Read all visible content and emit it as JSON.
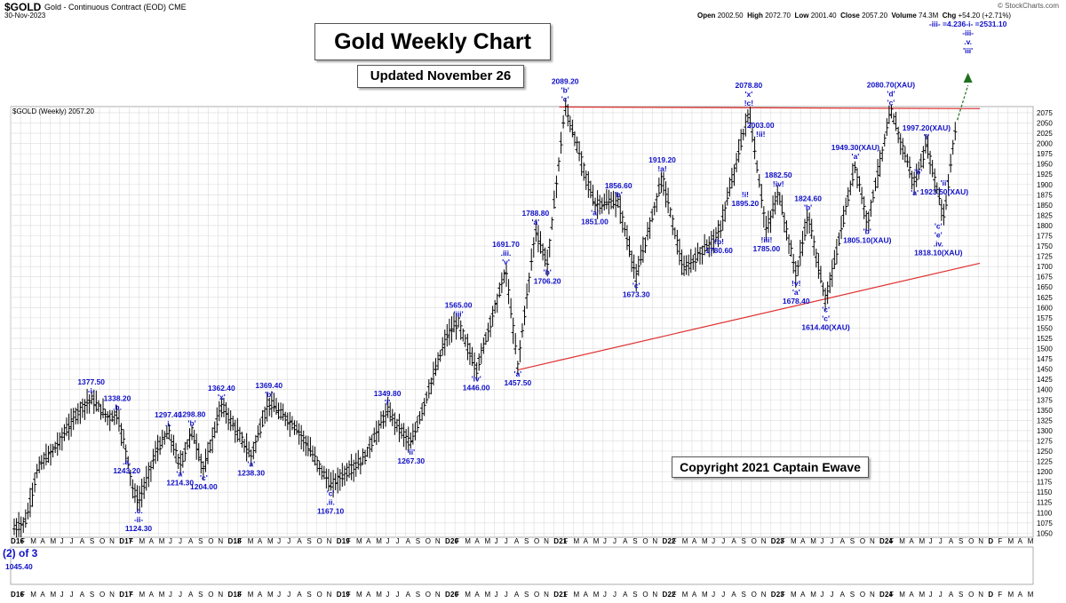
{
  "header": {
    "symbol": "$GOLD",
    "name": "Gold - Continuous Contract (EOD)",
    "exchange": "CME",
    "date": "30-Nov-2023",
    "brand": "© StockCharts.com",
    "open_label": "Open",
    "open": "2002.50",
    "high_label": "High",
    "high": "2072.70",
    "low_label": "Low",
    "low": "2001.40",
    "close_label": "Close",
    "close": "2057.20",
    "volume_label": "Volume",
    "volume": "74.3M",
    "chg_label": "Chg",
    "chg": "+54.20 (+2.71%)",
    "legend": "$GOLD (Weekly) 2057.20"
  },
  "boxes": {
    "title": "Gold Weekly Chart",
    "updated": "Updated November 26",
    "copyright": "Copyright 2021 Captain Ewave"
  },
  "lower_panel": {
    "label": "(2) of 3",
    "value": "1045.40"
  },
  "colors": {
    "wave_label": "#1010c8",
    "resistance": "#e03030",
    "support": "#e03030",
    "channel": "#b030d8",
    "projection": "#207020",
    "grid": "#dcdcdc",
    "bars": "#000000"
  },
  "chart_data": {
    "type": "ohlc",
    "title": "Gold Weekly Chart",
    "xlabel": "",
    "ylabel": "",
    "ylim": [
      1040,
      2090
    ],
    "y_ticks": [
      1050,
      1075,
      1100,
      1125,
      1150,
      1175,
      1200,
      1225,
      1250,
      1275,
      1300,
      1325,
      1350,
      1375,
      1400,
      1425,
      1450,
      1475,
      1500,
      1525,
      1550,
      1575,
      1600,
      1625,
      1650,
      1675,
      1700,
      1725,
      1750,
      1775,
      1800,
      1825,
      1850,
      1875,
      1900,
      1925,
      1950,
      1975,
      2000,
      2025,
      2050,
      2075
    ],
    "x_axis": {
      "month_labels": [
        "D",
        "F",
        "M",
        "A",
        "M",
        "J",
        "J",
        "A",
        "S",
        "O",
        "N",
        "D",
        "F",
        "M",
        "A",
        "M",
        "J",
        "J",
        "A",
        "S",
        "O",
        "N",
        "D",
        "F",
        "M",
        "A",
        "M",
        "J",
        "J",
        "A",
        "S",
        "O",
        "N",
        "D",
        "F",
        "M",
        "A",
        "M",
        "J",
        "J",
        "A",
        "S",
        "O",
        "N",
        "D",
        "F",
        "M",
        "A",
        "M",
        "J",
        "J",
        "A",
        "S",
        "O",
        "N",
        "D",
        "F",
        "M",
        "A",
        "M",
        "J",
        "J",
        "A",
        "S",
        "O",
        "N",
        "D",
        "F",
        "M",
        "A",
        "M",
        "J",
        "J",
        "A",
        "S",
        "O",
        "N",
        "D",
        "F",
        "M",
        "A",
        "M",
        "J",
        "J",
        "A",
        "S",
        "O",
        "N",
        "D",
        "F",
        "M",
        "A",
        "M",
        "J",
        "J",
        "A",
        "S",
        "O",
        "N",
        "D",
        "F",
        "M",
        "A",
        "M",
        "J"
      ],
      "year_labels": [
        "16",
        "17",
        "18",
        "19",
        "20",
        "21",
        "22",
        "23",
        "24"
      ]
    },
    "anchor_points": [
      {
        "t": 2015.95,
        "v": 1060
      },
      {
        "t": 2016.05,
        "v": 1080
      },
      {
        "t": 2016.15,
        "v": 1210
      },
      {
        "t": 2016.3,
        "v": 1260
      },
      {
        "t": 2016.5,
        "v": 1350
      },
      {
        "t": 2016.6,
        "v": 1377.5
      },
      {
        "t": 2016.75,
        "v": 1330
      },
      {
        "t": 2016.82,
        "v": 1338.2
      },
      {
        "t": 2016.9,
        "v": 1243.2
      },
      {
        "t": 2016.95,
        "v": 1160
      },
      {
        "t": 2017.0,
        "v": 1124.3
      },
      {
        "t": 2017.15,
        "v": 1250
      },
      {
        "t": 2017.25,
        "v": 1297.4
      },
      {
        "t": 2017.35,
        "v": 1214.3
      },
      {
        "t": 2017.45,
        "v": 1298.8
      },
      {
        "t": 2017.55,
        "v": 1204
      },
      {
        "t": 2017.7,
        "v": 1362.4
      },
      {
        "t": 2017.95,
        "v": 1238.3
      },
      {
        "t": 2018.1,
        "v": 1369.4
      },
      {
        "t": 2018.35,
        "v": 1300
      },
      {
        "t": 2018.62,
        "v": 1167.1
      },
      {
        "t": 2018.9,
        "v": 1230
      },
      {
        "t": 2019.1,
        "v": 1349.8
      },
      {
        "t": 2019.3,
        "v": 1267.3
      },
      {
        "t": 2019.6,
        "v": 1530
      },
      {
        "t": 2019.7,
        "v": 1565
      },
      {
        "t": 2019.85,
        "v": 1446
      },
      {
        "t": 2020.1,
        "v": 1691.7
      },
      {
        "t": 2020.2,
        "v": 1457.5
      },
      {
        "t": 2020.35,
        "v": 1788.8
      },
      {
        "t": 2020.45,
        "v": 1706.2
      },
      {
        "t": 2020.6,
        "v": 2089.2
      },
      {
        "t": 2020.85,
        "v": 1851
      },
      {
        "t": 2021.05,
        "v": 1856.6
      },
      {
        "t": 2021.2,
        "v": 1673.3
      },
      {
        "t": 2021.42,
        "v": 1919.2
      },
      {
        "t": 2021.6,
        "v": 1690
      },
      {
        "t": 2021.9,
        "v": 1780.6
      },
      {
        "t": 2022.15,
        "v": 2078.8
      },
      {
        "t": 2022.3,
        "v": 1785
      },
      {
        "t": 2022.4,
        "v": 1882.5
      },
      {
        "t": 2022.55,
        "v": 1678.4
      },
      {
        "t": 2022.65,
        "v": 1824.6
      },
      {
        "t": 2022.8,
        "v": 1614.4
      },
      {
        "t": 2023.05,
        "v": 1949.3
      },
      {
        "t": 2023.15,
        "v": 1805.1
      },
      {
        "t": 2023.35,
        "v": 2080.7
      },
      {
        "t": 2023.55,
        "v": 1900
      },
      {
        "t": 2023.65,
        "v": 1997.2
      },
      {
        "t": 2023.8,
        "v": 1818.1
      },
      {
        "t": 2023.88,
        "v": 2010
      },
      {
        "t": 2023.91,
        "v": 2057.2
      }
    ],
    "annotations": [
      {
        "t": 2016.6,
        "v": 1377.5,
        "lines": [
          "1377.50",
          "-i-"
        ],
        "pos": "above"
      },
      {
        "t": 2016.82,
        "v": 1338.2,
        "lines": [
          "1338.20",
          ".b."
        ],
        "pos": "above"
      },
      {
        "t": 2016.9,
        "v": 1243.2,
        "lines": [
          ".a.",
          "1243.20"
        ],
        "pos": "below"
      },
      {
        "t": 2017.0,
        "v": 1124.3,
        "lines": [
          ".c.",
          "-ii-",
          "1124.30"
        ],
        "pos": "below"
      },
      {
        "t": 2017.25,
        "v": 1297.4,
        "lines": [
          "1297.40",
          ".i."
        ],
        "pos": "above"
      },
      {
        "t": 2017.45,
        "v": 1298.8,
        "lines": [
          "1298.80",
          "'b'"
        ],
        "pos": "above"
      },
      {
        "t": 2017.35,
        "v": 1214.3,
        "lines": [
          "'a'",
          "1214.30"
        ],
        "pos": "below"
      },
      {
        "t": 2017.55,
        "v": 1204,
        "lines": [
          "'c'",
          "1204.00"
        ],
        "pos": "below"
      },
      {
        "t": 2017.7,
        "v": 1362.4,
        "lines": [
          "1362.40",
          "'x'"
        ],
        "pos": "above"
      },
      {
        "t": 2017.95,
        "v": 1238.3,
        "lines": [
          "'a'",
          "1238.30"
        ],
        "pos": "below"
      },
      {
        "t": 2018.1,
        "v": 1369.4,
        "lines": [
          "1369.40",
          "'b'"
        ],
        "pos": "above"
      },
      {
        "t": 2018.62,
        "v": 1167.1,
        "lines": [
          "'c'",
          ".ii.",
          "1167.10"
        ],
        "pos": "below"
      },
      {
        "t": 2019.1,
        "v": 1349.8,
        "lines": [
          "1349.80",
          "'i'"
        ],
        "pos": "above"
      },
      {
        "t": 2019.3,
        "v": 1267.3,
        "lines": [
          "'ii'",
          "1267.30"
        ],
        "pos": "below"
      },
      {
        "t": 2019.7,
        "v": 1565,
        "lines": [
          "1565.00",
          "'iii'"
        ],
        "pos": "above"
      },
      {
        "t": 2019.85,
        "v": 1446,
        "lines": [
          "'iv'",
          "1446.00"
        ],
        "pos": "below"
      },
      {
        "t": 2020.1,
        "v": 1691.7,
        "lines": [
          "1691.70",
          ".iii.",
          "'v'"
        ],
        "pos": "above"
      },
      {
        "t": 2020.2,
        "v": 1457.5,
        "lines": [
          "'a'",
          "1457.50"
        ],
        "pos": "below"
      },
      {
        "t": 2020.35,
        "v": 1788.8,
        "lines": [
          "1788.80",
          "'a'"
        ],
        "pos": "above"
      },
      {
        "t": 2020.45,
        "v": 1706.2,
        "lines": [
          "'b'",
          "1706.20"
        ],
        "pos": "below"
      },
      {
        "t": 2020.6,
        "v": 2089.2,
        "lines": [
          "2089.20",
          "'b'",
          "'c'"
        ],
        "pos": "above"
      },
      {
        "t": 2020.85,
        "v": 1851,
        "lines": [
          "'a'",
          "1851.00"
        ],
        "pos": "below"
      },
      {
        "t": 2021.05,
        "v": 1856.6,
        "lines": [
          "1856.60",
          "'b'"
        ],
        "pos": "above"
      },
      {
        "t": 2021.2,
        "v": 1673.3,
        "lines": [
          "'c'",
          "1673.30"
        ],
        "pos": "below"
      },
      {
        "t": 2021.42,
        "v": 1919.2,
        "lines": [
          "1919.20",
          "!a!"
        ],
        "pos": "above"
      },
      {
        "t": 2021.9,
        "v": 1780.6,
        "lines": [
          "!b!",
          "1780.60"
        ],
        "pos": "below"
      },
      {
        "t": 2022.15,
        "v": 2078.8,
        "lines": [
          "2078.80",
          "'x'",
          "!c!"
        ],
        "pos": "above"
      },
      {
        "t": 2022.12,
        "v": 1895.2,
        "lines": [
          "!i!",
          "1895.20"
        ],
        "pos": "below"
      },
      {
        "t": 2022.25,
        "v": 2003,
        "lines": [
          "2003.00",
          "!ii!"
        ],
        "pos": "above"
      },
      {
        "t": 2022.3,
        "v": 1785,
        "lines": [
          "!iii!",
          "1785.00"
        ],
        "pos": "below"
      },
      {
        "t": 2022.4,
        "v": 1882.5,
        "lines": [
          "1882.50",
          "!iv!"
        ],
        "pos": "above"
      },
      {
        "t": 2022.55,
        "v": 1678.4,
        "lines": [
          "!v!",
          "'a'",
          "1678.40"
        ],
        "pos": "below"
      },
      {
        "t": 2022.65,
        "v": 1824.6,
        "lines": [
          "1824.60",
          "'b'"
        ],
        "pos": "above"
      },
      {
        "t": 2022.8,
        "v": 1614.4,
        "lines": [
          "'c'",
          "'c'",
          "1614.40(XAU)"
        ],
        "pos": "below"
      },
      {
        "t": 2023.05,
        "v": 1949.3,
        "lines": [
          "1949.30(XAU)",
          "'a'"
        ],
        "pos": "above"
      },
      {
        "t": 2023.15,
        "v": 1805.1,
        "lines": [
          "'b'",
          "1805.10(XAU)"
        ],
        "pos": "below"
      },
      {
        "t": 2023.35,
        "v": 2080.7,
        "lines": [
          "2080.70(XAU)",
          "'d'",
          "'c'"
        ],
        "pos": "above"
      },
      {
        "t": 2023.55,
        "v": 1900,
        "lines": [
          "'a'"
        ],
        "pos": "below"
      },
      {
        "t": 2023.65,
        "v": 1997.2,
        "lines": [
          "1997.20(XAU)",
          "'i'"
        ],
        "pos": "above"
      },
      {
        "t": 2023.58,
        "v": 1950,
        "lines": [
          "'b'"
        ],
        "pos": "below"
      },
      {
        "t": 2023.8,
        "v": 1923.5,
        "lines": [
          "'ii'",
          "1923.50(XAU)"
        ],
        "pos": "below"
      },
      {
        "t": 2023.75,
        "v": 1818.1,
        "lines": [
          "'c'",
          "'e'",
          ".iv.",
          "1818.10(XAU)"
        ],
        "pos": "below"
      },
      {
        "t": 2024.0,
        "v": 2531.1,
        "lines": [
          "-iii- =4.236-i- =2531.10",
          "-iii-",
          ".v.",
          "'iii'"
        ],
        "pos": "top"
      }
    ],
    "trendlines": [
      {
        "name": "resistance",
        "from": {
          "t": 2020.55,
          "v": 2089
        },
        "to": {
          "t": 2024.1,
          "v": 2085
        }
      },
      {
        "name": "support",
        "from": {
          "t": 2020.2,
          "v": 1448
        },
        "to": {
          "t": 2024.1,
          "v": 1708
        }
      }
    ]
  }
}
